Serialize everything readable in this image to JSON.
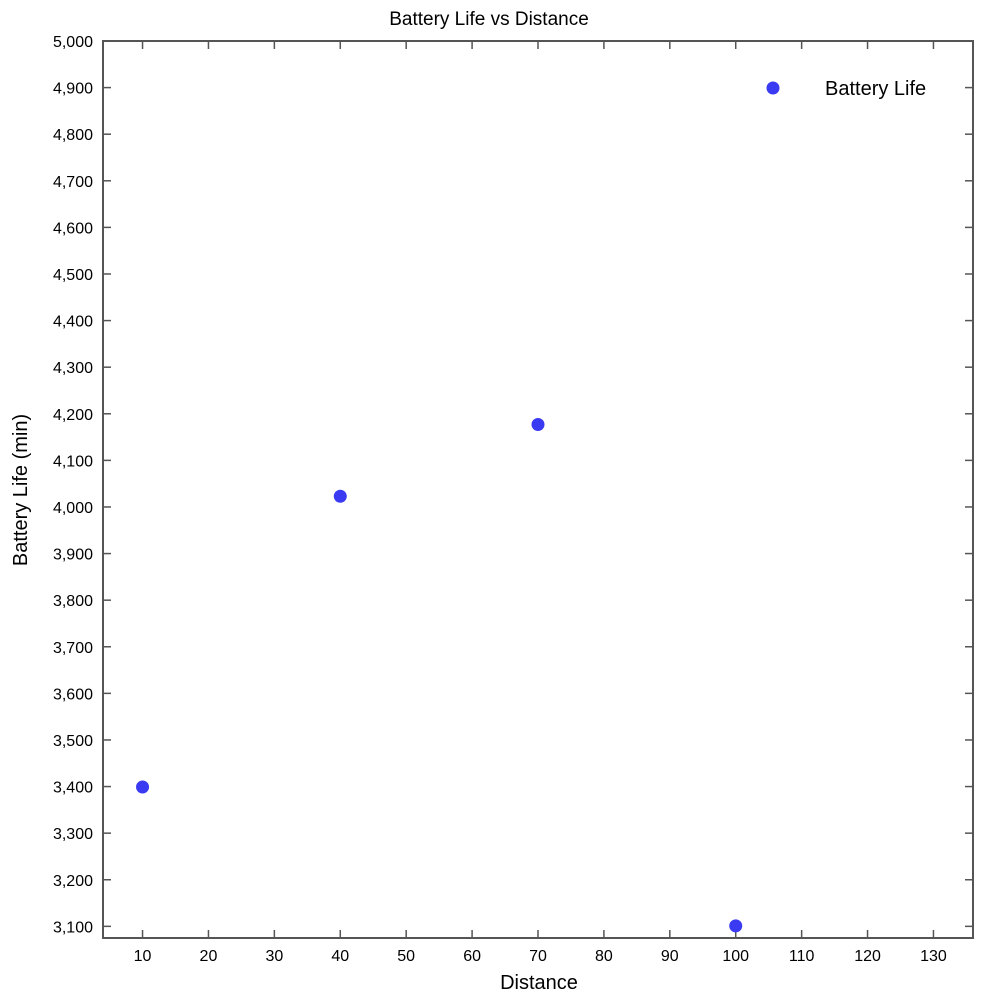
{
  "chart_data": {
    "type": "scatter",
    "title": "Battery Life vs Distance",
    "xlabel": "Distance",
    "ylabel": "Battery Life (min)",
    "xlim": [
      4,
      136
    ],
    "ylim": [
      3075,
      5000
    ],
    "x_ticks": [
      10,
      20,
      30,
      40,
      50,
      60,
      70,
      80,
      90,
      100,
      110,
      120,
      130
    ],
    "x_tick_labels": [
      "10",
      "20",
      "30",
      "40",
      "50",
      "60",
      "70",
      "80",
      "90",
      "100",
      "110",
      "120",
      "130"
    ],
    "y_ticks": [
      3100,
      3200,
      3300,
      3400,
      3500,
      3600,
      3700,
      3800,
      3900,
      4000,
      4100,
      4200,
      4300,
      4400,
      4500,
      4600,
      4700,
      4800,
      4900,
      5000
    ],
    "y_tick_labels": [
      "3,100",
      "3,200",
      "3,300",
      "3,400",
      "3,500",
      "3,600",
      "3,700",
      "3,800",
      "3,900",
      "4,000",
      "4,100",
      "4,200",
      "4,300",
      "4,400",
      "4,500",
      "4,600",
      "4,700",
      "4,800",
      "4,900",
      "5,000"
    ],
    "grid": false,
    "legend_position": "top-right",
    "series": [
      {
        "name": "Battery Life",
        "color": "#3a3af2",
        "points": [
          {
            "x": 10,
            "y": 3399
          },
          {
            "x": 40,
            "y": 4023
          },
          {
            "x": 70,
            "y": 4177
          },
          {
            "x": 100,
            "y": 3101
          }
        ]
      }
    ]
  }
}
